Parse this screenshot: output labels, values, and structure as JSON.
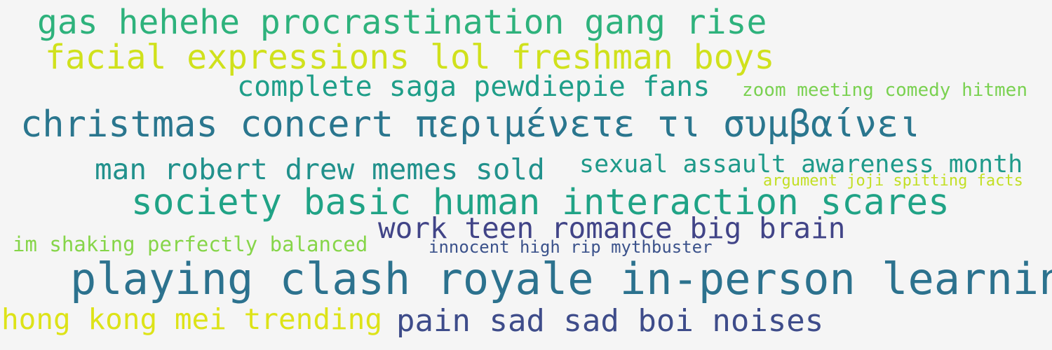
{
  "word_cloud": {
    "background_color": "#f5f5f5",
    "phrases": [
      {
        "text": "gas hehehe procrastination gang rise",
        "color": "#2eb27c"
      },
      {
        "text": "facial expressions lol freshman boys",
        "color": "#d0e11c"
      },
      {
        "text": "complete saga pewdiepie fans",
        "color": "#1f9e89"
      },
      {
        "text": "zoom meeting comedy hitmen",
        "color": "#7ad151"
      },
      {
        "text": "christmas concert περιμένετε τι συμβαίνει",
        "color": "#2a768e"
      },
      {
        "text": "man robert drew memes sold",
        "color": "#21918c"
      },
      {
        "text": "sexual assault awareness month",
        "color": "#1f9a8a"
      },
      {
        "text": "argument joji spitting facts",
        "color": "#c2df23"
      },
      {
        "text": "society basic human interaction scares",
        "color": "#20a386"
      },
      {
        "text": "work teen romance big brain",
        "color": "#414487"
      },
      {
        "text": "im shaking perfectly balanced",
        "color": "#86d549"
      },
      {
        "text": "innocent high rip mythbuster",
        "color": "#3b528b"
      },
      {
        "text": "playing clash royale in-person learning",
        "color": "#2c728e"
      },
      {
        "text": "hong kong mei trending",
        "color": "#dde318"
      },
      {
        "text": "pain sad sad boi noises",
        "color": "#3e4c8a"
      }
    ]
  }
}
